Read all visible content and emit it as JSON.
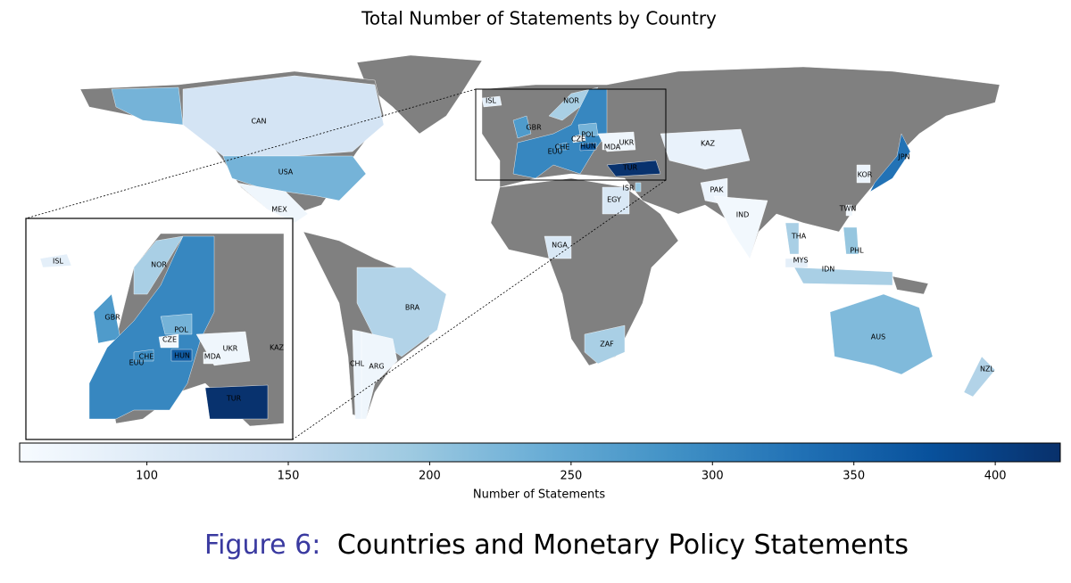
{
  "chart_data": {
    "type": "choropleth",
    "title": "Total Number of Statements by Country",
    "missing_color": "#808080",
    "countries": [
      {
        "code": "CAN",
        "value": 120
      },
      {
        "code": "USA",
        "value": 230
      },
      {
        "code": "MEX",
        "value": 70
      },
      {
        "code": "BRA",
        "value": 170
      },
      {
        "code": "CHL",
        "value": 75
      },
      {
        "code": "ARG",
        "value": 70
      },
      {
        "code": "ISL",
        "value": 90
      },
      {
        "code": "NOR",
        "value": 180
      },
      {
        "code": "GBR",
        "value": 270
      },
      {
        "code": "EUU",
        "value": 300
      },
      {
        "code": "CHE",
        "value": 290
      },
      {
        "code": "CZE",
        "value": 65
      },
      {
        "code": "POL",
        "value": 230
      },
      {
        "code": "HUN",
        "value": 360
      },
      {
        "code": "MDA",
        "value": 70
      },
      {
        "code": "UKR",
        "value": 70
      },
      {
        "code": "TUR",
        "value": 420
      },
      {
        "code": "KAZ",
        "value": 80
      },
      {
        "code": "ISR",
        "value": 200
      },
      {
        "code": "EGY",
        "value": 110
      },
      {
        "code": "NGA",
        "value": 110
      },
      {
        "code": "ZAF",
        "value": 180
      },
      {
        "code": "PAK",
        "value": 75
      },
      {
        "code": "IND",
        "value": 65
      },
      {
        "code": "THA",
        "value": 180
      },
      {
        "code": "MYS",
        "value": 90
      },
      {
        "code": "IDN",
        "value": 180
      },
      {
        "code": "PHL",
        "value": 200
      },
      {
        "code": "TWN",
        "value": 70
      },
      {
        "code": "KOR",
        "value": 75
      },
      {
        "code": "JPN",
        "value": 330
      },
      {
        "code": "AUS",
        "value": 220
      },
      {
        "code": "NZL",
        "value": 170
      }
    ],
    "colorbar": {
      "label": "Number of Statements",
      "lim": [
        55,
        423
      ],
      "ticks": [
        100,
        150,
        200,
        250,
        300,
        350,
        400
      ],
      "colormap": [
        "#f7fbff",
        "#deebf7",
        "#c6dbef",
        "#9ecae1",
        "#6baed6",
        "#4292c6",
        "#2171b5",
        "#08519c",
        "#08306b"
      ]
    }
  },
  "caption": {
    "label": "Figure 6:",
    "text": "Countries and Monetary Policy Statements"
  }
}
